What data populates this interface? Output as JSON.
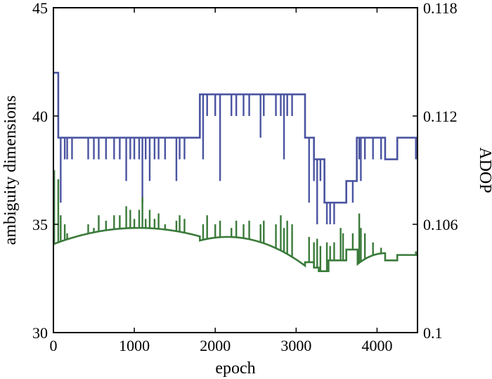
{
  "chart_data": {
    "type": "line",
    "xlabel": "epoch",
    "ylabel_left": "ambiguity dimensions",
    "ylabel_right": "ADOP",
    "xlim": [
      0,
      4500
    ],
    "ylim_left": [
      30,
      45
    ],
    "ylim_right": [
      0.1,
      0.118
    ],
    "x_ticks": [
      "0",
      "1000",
      "2000",
      "3000",
      "4000"
    ],
    "y_left_ticks": [
      "30",
      "35",
      "40",
      "45"
    ],
    "y_right_ticks": [
      "0.1",
      "0.106",
      "0.112",
      "0.118"
    ],
    "colors": {
      "blue": "#4a54a0",
      "green": "#3a7a3a"
    },
    "series": [
      {
        "axis": "left",
        "color": "blue",
        "base_steps": [
          [
            0,
            42
          ],
          [
            60,
            39
          ],
          [
            1810,
            41
          ],
          [
            3110,
            39
          ],
          [
            3220,
            38
          ],
          [
            3350,
            36
          ],
          [
            3620,
            37
          ],
          [
            3750,
            39
          ],
          [
            4100,
            38
          ],
          [
            4250,
            39
          ],
          [
            4500,
            39
          ]
        ],
        "spikes": [
          [
            90,
            36
          ],
          [
            140,
            38
          ],
          [
            170,
            38
          ],
          [
            230,
            38
          ],
          [
            430,
            38
          ],
          [
            500,
            38
          ],
          [
            560,
            38
          ],
          [
            650,
            38
          ],
          [
            750,
            38
          ],
          [
            820,
            38
          ],
          [
            900,
            37
          ],
          [
            950,
            38
          ],
          [
            1000,
            38
          ],
          [
            1060,
            38
          ],
          [
            1100,
            36
          ],
          [
            1140,
            38
          ],
          [
            1190,
            37
          ],
          [
            1250,
            38
          ],
          [
            1300,
            38
          ],
          [
            1380,
            38
          ],
          [
            1520,
            37
          ],
          [
            1560,
            38
          ],
          [
            1620,
            38
          ],
          [
            1850,
            38
          ],
          [
            1900,
            40
          ],
          [
            2000,
            40
          ],
          [
            2060,
            37
          ],
          [
            2200,
            40
          ],
          [
            2260,
            40
          ],
          [
            2350,
            40
          ],
          [
            2420,
            40
          ],
          [
            2560,
            39
          ],
          [
            2600,
            40
          ],
          [
            2750,
            40
          ],
          [
            2810,
            40
          ],
          [
            2850,
            38
          ],
          [
            2890,
            40
          ],
          [
            2950,
            40
          ],
          [
            3160,
            36
          ],
          [
            3220,
            37
          ],
          [
            3260,
            35
          ],
          [
            3300,
            37
          ],
          [
            3380,
            35
          ],
          [
            3420,
            35
          ],
          [
            3470,
            35
          ],
          [
            3550,
            36
          ],
          [
            3580,
            36
          ],
          [
            3700,
            36
          ],
          [
            3780,
            38
          ],
          [
            3800,
            37
          ],
          [
            3850,
            38
          ],
          [
            3950,
            38
          ],
          [
            4050,
            38
          ],
          [
            4480,
            38
          ]
        ]
      },
      {
        "axis": "right",
        "color": "green",
        "segments": [
          {
            "x0": 0,
            "x1": 1810,
            "peak_x": 1050,
            "peak_y": 0.1058,
            "start_y": 0.1049
          },
          {
            "x0": 1810,
            "x1": 3110,
            "peak_x": 2150,
            "peak_y": 0.1053,
            "start_y": 0.1051,
            "end_y": 0.1036
          },
          {
            "x0": 3110,
            "x1": 3220,
            "level": 0.1039
          },
          {
            "x0": 3220,
            "x1": 3280,
            "level": 0.1036
          },
          {
            "x0": 3280,
            "x1": 3400,
            "level": 0.1034
          },
          {
            "x0": 3400,
            "x1": 3620,
            "level": 0.104
          },
          {
            "x0": 3620,
            "x1": 3760,
            "level": 0.1046
          },
          {
            "x0": 3760,
            "x1": 4100,
            "peak_x": 4100,
            "peak_y": 0.1044,
            "start_y": 0.1038
          },
          {
            "x0": 4100,
            "x1": 4250,
            "level": 0.104
          },
          {
            "x0": 4250,
            "x1": 4500,
            "level": 0.1043
          }
        ],
        "spikes": [
          [
            10,
            0.109
          ],
          [
            60,
            0.1085
          ],
          [
            90,
            0.1065
          ],
          [
            140,
            0.106
          ],
          [
            170,
            0.1055
          ],
          [
            430,
            0.106
          ],
          [
            500,
            0.1058
          ],
          [
            560,
            0.1065
          ],
          [
            650,
            0.1062
          ],
          [
            750,
            0.1065
          ],
          [
            820,
            0.1065
          ],
          [
            900,
            0.107
          ],
          [
            950,
            0.1068
          ],
          [
            1000,
            0.1063
          ],
          [
            1060,
            0.1068
          ],
          [
            1100,
            0.1075
          ],
          [
            1140,
            0.1063
          ],
          [
            1190,
            0.1068
          ],
          [
            1250,
            0.1063
          ],
          [
            1300,
            0.1066
          ],
          [
            1380,
            0.106
          ],
          [
            1520,
            0.1062
          ],
          [
            1560,
            0.1065
          ],
          [
            1620,
            0.1063
          ],
          [
            1850,
            0.106
          ],
          [
            1900,
            0.1065
          ],
          [
            2000,
            0.106
          ],
          [
            2060,
            0.1062
          ],
          [
            2200,
            0.1058
          ],
          [
            2260,
            0.1062
          ],
          [
            2350,
            0.106
          ],
          [
            2420,
            0.1062
          ],
          [
            2560,
            0.106
          ],
          [
            2600,
            0.1062
          ],
          [
            2750,
            0.106
          ],
          [
            2810,
            0.1065
          ],
          [
            2850,
            0.1058
          ],
          [
            2890,
            0.1062
          ],
          [
            2950,
            0.106
          ],
          [
            3160,
            0.1053
          ],
          [
            3220,
            0.105
          ],
          [
            3260,
            0.1052
          ],
          [
            3300,
            0.1048
          ],
          [
            3380,
            0.105
          ],
          [
            3420,
            0.1048
          ],
          [
            3470,
            0.105
          ],
          [
            3550,
            0.1058
          ],
          [
            3580,
            0.1055
          ],
          [
            3700,
            0.1055
          ],
          [
            3780,
            0.1066
          ],
          [
            3800,
            0.1058
          ],
          [
            3850,
            0.1055
          ],
          [
            3950,
            0.105
          ],
          [
            4050,
            0.1047
          ],
          [
            4480,
            0.1045
          ]
        ]
      }
    ]
  }
}
